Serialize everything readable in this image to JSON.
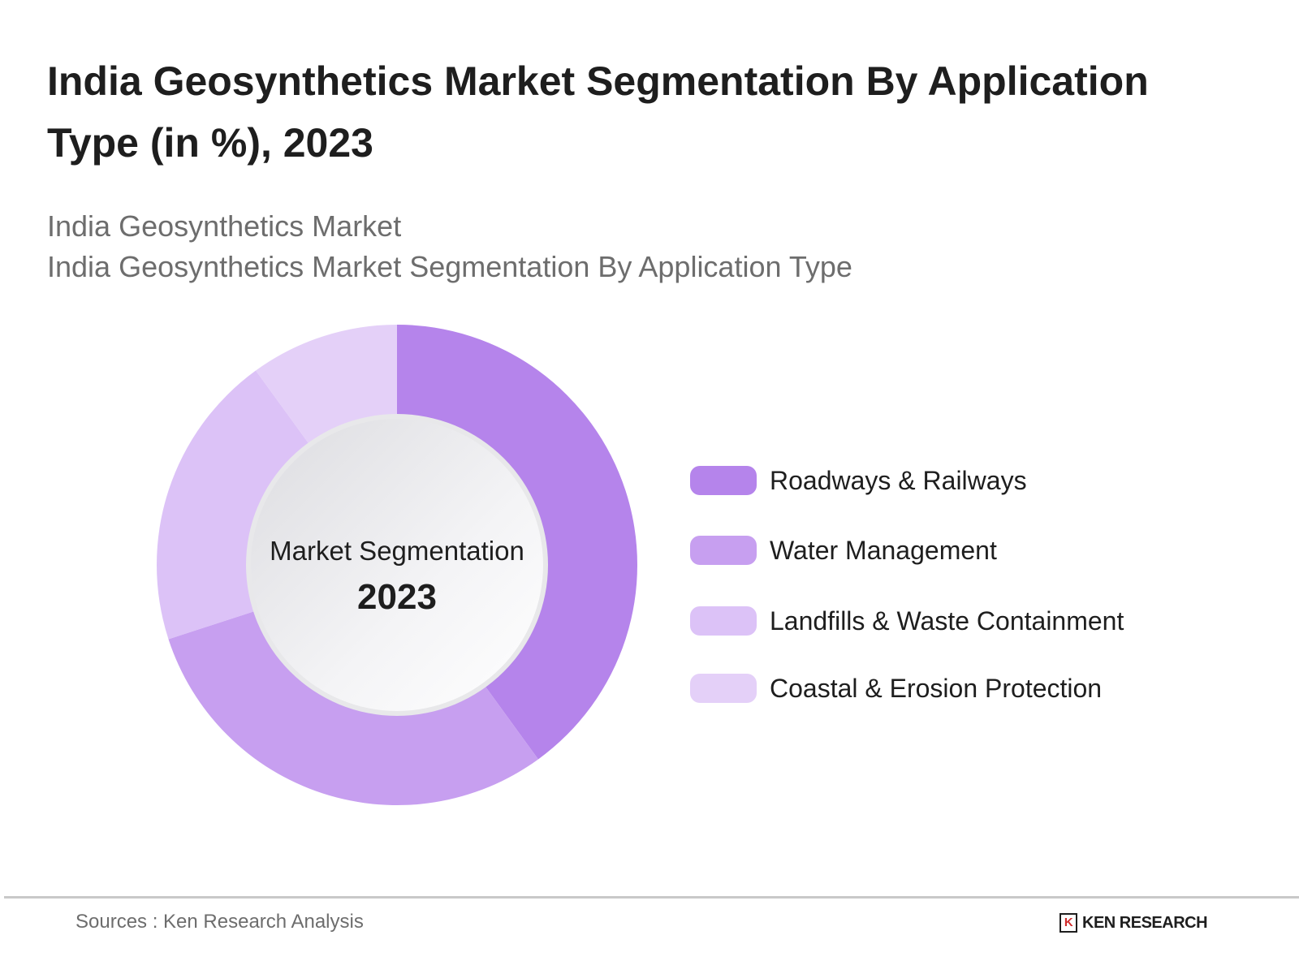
{
  "title": "India Geosynthetics Market Segmentation By Application Type (in %), 2023",
  "subtitle1": "India Geosynthetics Market",
  "subtitle2": "India Geosynthetics Market Segmentation By Application Type",
  "chart_data": {
    "type": "pie",
    "title": "India Geosynthetics Market Segmentation By Application Type (in %), 2023",
    "center_label": "Market Segmentation",
    "center_year": "2023",
    "categories": [
      "Roadways & Railways",
      "Water Management",
      "Landfills & Waste Containment",
      "Coastal & Erosion Protection"
    ],
    "values": [
      40,
      30,
      20,
      10
    ],
    "colors": [
      "#b584eb",
      "#c79ff0",
      "#dcc2f7",
      "#e4d0f8"
    ],
    "legend": "right"
  },
  "footer": {
    "sources": "Sources : Ken Research Analysis",
    "logo": "KEN RESEARCH",
    "logo_mark": "K"
  }
}
